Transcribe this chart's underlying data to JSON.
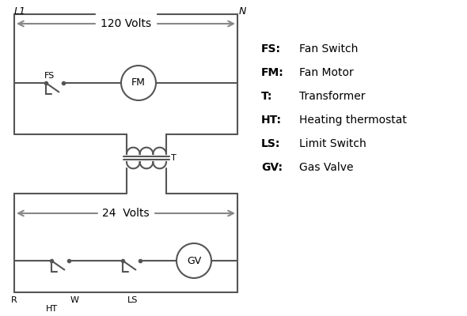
{
  "background_color": "#ffffff",
  "line_color": "#555555",
  "arrow_color": "#888888",
  "text_color": "#000000",
  "legend_items": [
    [
      "FS:",
      "Fan Switch"
    ],
    [
      "FM:",
      "Fan Motor"
    ],
    [
      "T:",
      "Transformer"
    ],
    [
      "HT:",
      "Heating thermostat"
    ],
    [
      "LS:",
      "Limit Switch"
    ],
    [
      "GV:",
      "Gas Valve"
    ]
  ],
  "L1_label": "L1",
  "N_label": "N",
  "volts120_label": "120 Volts",
  "volts24_label": "24  Volts",
  "T_label": "T",
  "R_label": "R",
  "W_label": "W",
  "HT_label": "HT",
  "LS_label": "LS",
  "FS_label": "FS",
  "FM_label": "FM",
  "GV_label": "GV"
}
